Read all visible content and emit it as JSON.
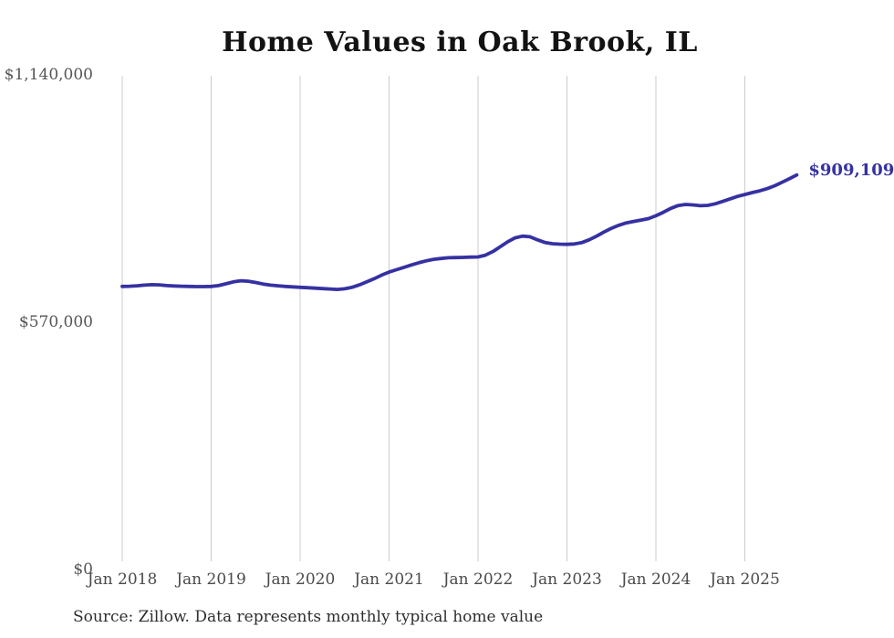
{
  "chart_data": {
    "type": "line",
    "title": "Home Values in Oak Brook, IL",
    "series_name": "Typical home value",
    "x": [
      "Jan 2018",
      "Feb 2018",
      "Mar 2018",
      "Apr 2018",
      "May 2018",
      "Jun 2018",
      "Jul 2018",
      "Aug 2018",
      "Sep 2018",
      "Oct 2018",
      "Nov 2018",
      "Dec 2018",
      "Jan 2019",
      "Feb 2019",
      "Mar 2019",
      "Apr 2019",
      "May 2019",
      "Jun 2019",
      "Jul 2019",
      "Aug 2019",
      "Sep 2019",
      "Oct 2019",
      "Nov 2019",
      "Dec 2019",
      "Jan 2020",
      "Feb 2020",
      "Mar 2020",
      "Apr 2020",
      "May 2020",
      "Jun 2020",
      "Jul 2020",
      "Aug 2020",
      "Sep 2020",
      "Oct 2020",
      "Nov 2020",
      "Dec 2020",
      "Jan 2021",
      "Feb 2021",
      "Mar 2021",
      "Apr 2021",
      "May 2021",
      "Jun 2021",
      "Jul 2021",
      "Aug 2021",
      "Sep 2021",
      "Oct 2021",
      "Nov 2021",
      "Dec 2021",
      "Jan 2022",
      "Feb 2022",
      "Mar 2022",
      "Apr 2022",
      "May 2022",
      "Jun 2022",
      "Jul 2022",
      "Aug 2022",
      "Sep 2022",
      "Oct 2022",
      "Nov 2022",
      "Dec 2022",
      "Jan 2023",
      "Feb 2023",
      "Mar 2023",
      "Apr 2023",
      "May 2023",
      "Jun 2023",
      "Jul 2023",
      "Aug 2023",
      "Sep 2023",
      "Oct 2023",
      "Nov 2023",
      "Dec 2023",
      "Jan 2024",
      "Feb 2024",
      "Mar 2024",
      "Apr 2024",
      "May 2024",
      "Jun 2024",
      "Jul 2024",
      "Aug 2024",
      "Sep 2024",
      "Oct 2024",
      "Nov 2024",
      "Dec 2024",
      "Jan 2025",
      "Feb 2025",
      "Mar 2025",
      "Apr 2025",
      "May 2025",
      "Jun 2025",
      "Jul 2025",
      "Aug 2025"
    ],
    "values": [
      652000,
      652500,
      653500,
      655000,
      656000,
      655500,
      654000,
      653000,
      652500,
      652000,
      651500,
      651500,
      652000,
      654000,
      658000,
      662500,
      665000,
      664000,
      661000,
      657500,
      655000,
      653500,
      652000,
      651000,
      650000,
      649000,
      648000,
      647000,
      646000,
      645000,
      646500,
      650000,
      655500,
      662500,
      670000,
      678000,
      685000,
      690500,
      696000,
      701500,
      706500,
      711000,
      714500,
      716500,
      718000,
      718500,
      719000,
      719500,
      720000,
      724000,
      732500,
      743500,
      755000,
      764000,
      768000,
      766500,
      759500,
      753500,
      750500,
      749500,
      749000,
      750000,
      753000,
      759500,
      768000,
      777500,
      786000,
      793000,
      798500,
      802000,
      805000,
      808500,
      815000,
      823000,
      832000,
      838500,
      841000,
      840000,
      838000,
      839000,
      842500,
      848000,
      854000,
      859500,
      864000,
      868500,
      872500,
      877500,
      884000,
      892000,
      900500,
      909109
    ],
    "x_tick_labels": [
      "Jan 2018",
      "Jan 2019",
      "Jan 2020",
      "Jan 2021",
      "Jan 2022",
      "Jan 2023",
      "Jan 2024",
      "Jan 2025"
    ],
    "y_ticks": [
      {
        "label": "$1,140,000",
        "value": 1140000
      },
      {
        "label": "$570,000",
        "value": 570000
      },
      {
        "label": "$0",
        "value": 0
      }
    ],
    "ylim": [
      0,
      1140000
    ],
    "grid": "vertical-only",
    "legend": "none",
    "last_value": 909109,
    "end_label": "$909,109",
    "colors": {
      "line": "#3631a2",
      "grid": "#cccccc",
      "title": "#131313",
      "axis_labels": "#4a4a4a",
      "source": "#2e2e2e"
    },
    "source_note": "Source: Zillow. Data represents monthly typical home value"
  }
}
